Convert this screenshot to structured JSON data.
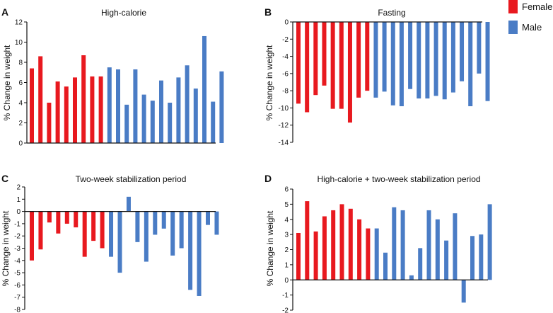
{
  "colors": {
    "female": "#E8191F",
    "male": "#4A7CC5",
    "axis": "#111111"
  },
  "legend": [
    {
      "label": "Female",
      "color": "#E8191F"
    },
    {
      "label": "Male",
      "color": "#4A7CC5"
    }
  ],
  "chart_data": [
    {
      "panel": "A",
      "type": "bar",
      "title": "High-calorie",
      "ylabel": "% Change in weight",
      "ylim": [
        0,
        12
      ],
      "yticks": [
        0,
        2,
        4,
        6,
        8,
        10,
        12
      ],
      "female_count": 9,
      "values": [
        7.4,
        8.6,
        4.0,
        6.1,
        5.6,
        6.5,
        8.7,
        6.6,
        6.6,
        7.5,
        7.3,
        3.8,
        7.3,
        4.8,
        4.2,
        6.2,
        4.0,
        6.5,
        7.7,
        5.4,
        10.6,
        4.1,
        7.1
      ]
    },
    {
      "panel": "B",
      "type": "bar",
      "title": "Fasting",
      "ylabel": "% Change in weight",
      "ylim": [
        -14,
        0
      ],
      "yticks": [
        0,
        -2,
        -4,
        -6,
        -8,
        -10,
        -12,
        -14
      ],
      "female_count": 9,
      "values": [
        -9.5,
        -10.5,
        -8.5,
        -7.4,
        -10.1,
        -10.1,
        -11.7,
        -8.8,
        -8.0,
        -8.8,
        -8.1,
        -9.7,
        -9.8,
        -7.8,
        -8.9,
        -8.9,
        -8.6,
        -9.0,
        -8.2,
        -6.9,
        -9.8,
        -6.0,
        -9.2
      ]
    },
    {
      "panel": "C",
      "type": "bar",
      "title": "Two-week stabilization period",
      "ylabel": "% Change in weight",
      "ylim": [
        -8,
        2
      ],
      "yticks": [
        2,
        1,
        0,
        -1,
        -2,
        -3,
        -4,
        -5,
        -6,
        -7,
        -8
      ],
      "female_count": 9,
      "values": [
        -4.0,
        -3.1,
        -0.9,
        -1.8,
        -1.0,
        -1.3,
        -3.7,
        -2.4,
        -3.0,
        -3.7,
        -5.0,
        1.2,
        -2.5,
        -4.1,
        -1.9,
        -1.4,
        -3.6,
        -3.0,
        -6.4,
        -6.9,
        -1.1,
        -1.9
      ]
    },
    {
      "panel": "D",
      "type": "bar",
      "title": "High-calorie + two-week stabilization period",
      "ylabel": "% Change in weight",
      "ylim": [
        -2,
        6
      ],
      "yticks": [
        6,
        5,
        4,
        3,
        2,
        1,
        0,
        -1,
        -2
      ],
      "female_count": 9,
      "values": [
        3.1,
        5.2,
        3.2,
        4.2,
        4.6,
        5.0,
        4.7,
        4.0,
        3.4,
        3.4,
        1.8,
        4.8,
        4.6,
        0.3,
        2.1,
        4.6,
        4.0,
        2.6,
        4.4,
        -1.5,
        2.9,
        3.0,
        5.0
      ]
    }
  ]
}
